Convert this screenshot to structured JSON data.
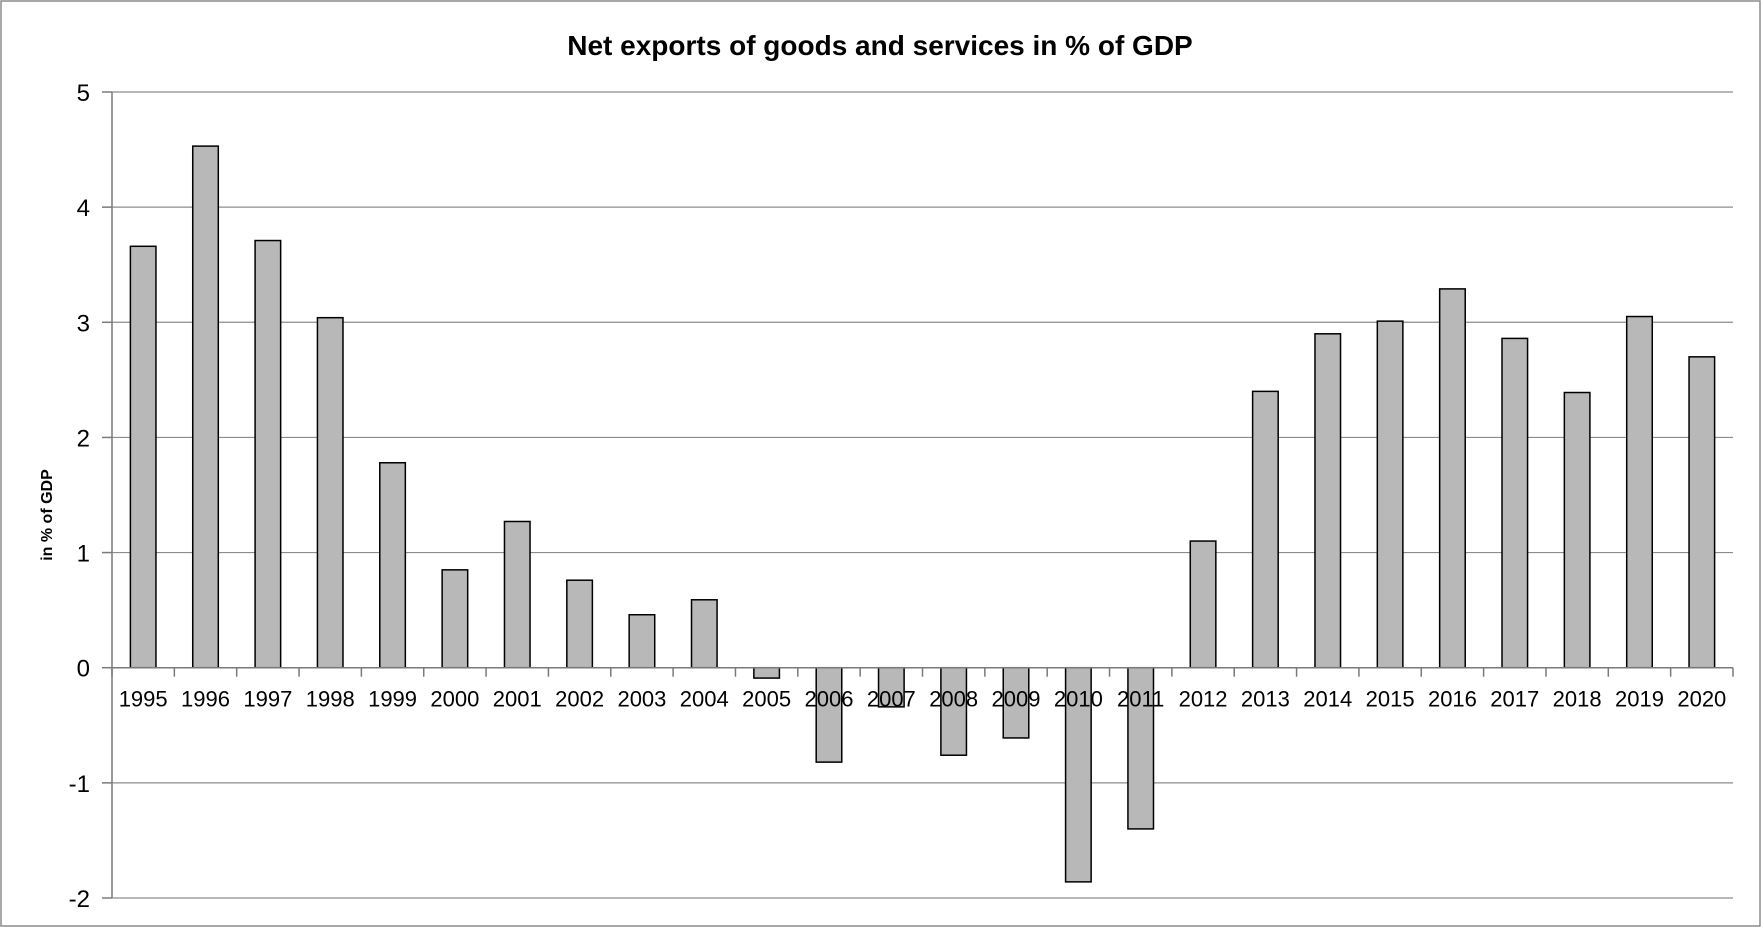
{
  "chart_data": {
    "type": "bar",
    "title": "Net exports of goods and services in % of GDP",
    "xlabel": "",
    "ylabel": "in % of GDP",
    "ylim": [
      -2,
      5
    ],
    "yticks": [
      5,
      4,
      3,
      2,
      1,
      0,
      -1,
      -2
    ],
    "grid": true,
    "legend": "none",
    "categories": [
      "1995",
      "1996",
      "1997",
      "1998",
      "1999",
      "2000",
      "2001",
      "2002",
      "2003",
      "2004",
      "2005",
      "2006",
      "2007",
      "2008",
      "2009",
      "2010",
      "2011",
      "2012",
      "2013",
      "2014",
      "2015",
      "2016",
      "2017",
      "2018",
      "2019",
      "2020"
    ],
    "values": [
      3.66,
      4.53,
      3.71,
      3.04,
      1.78,
      0.85,
      1.27,
      0.76,
      0.46,
      0.59,
      -0.09,
      -0.82,
      -0.34,
      -0.76,
      -0.61,
      -1.86,
      -1.4,
      1.1,
      2.4,
      2.9,
      3.01,
      3.29,
      2.86,
      2.39,
      3.05,
      2.7
    ],
    "colors": {
      "bar_fill": "#b8b8b8",
      "bar_stroke": "#000000",
      "grid": "#8c8c8c"
    }
  }
}
